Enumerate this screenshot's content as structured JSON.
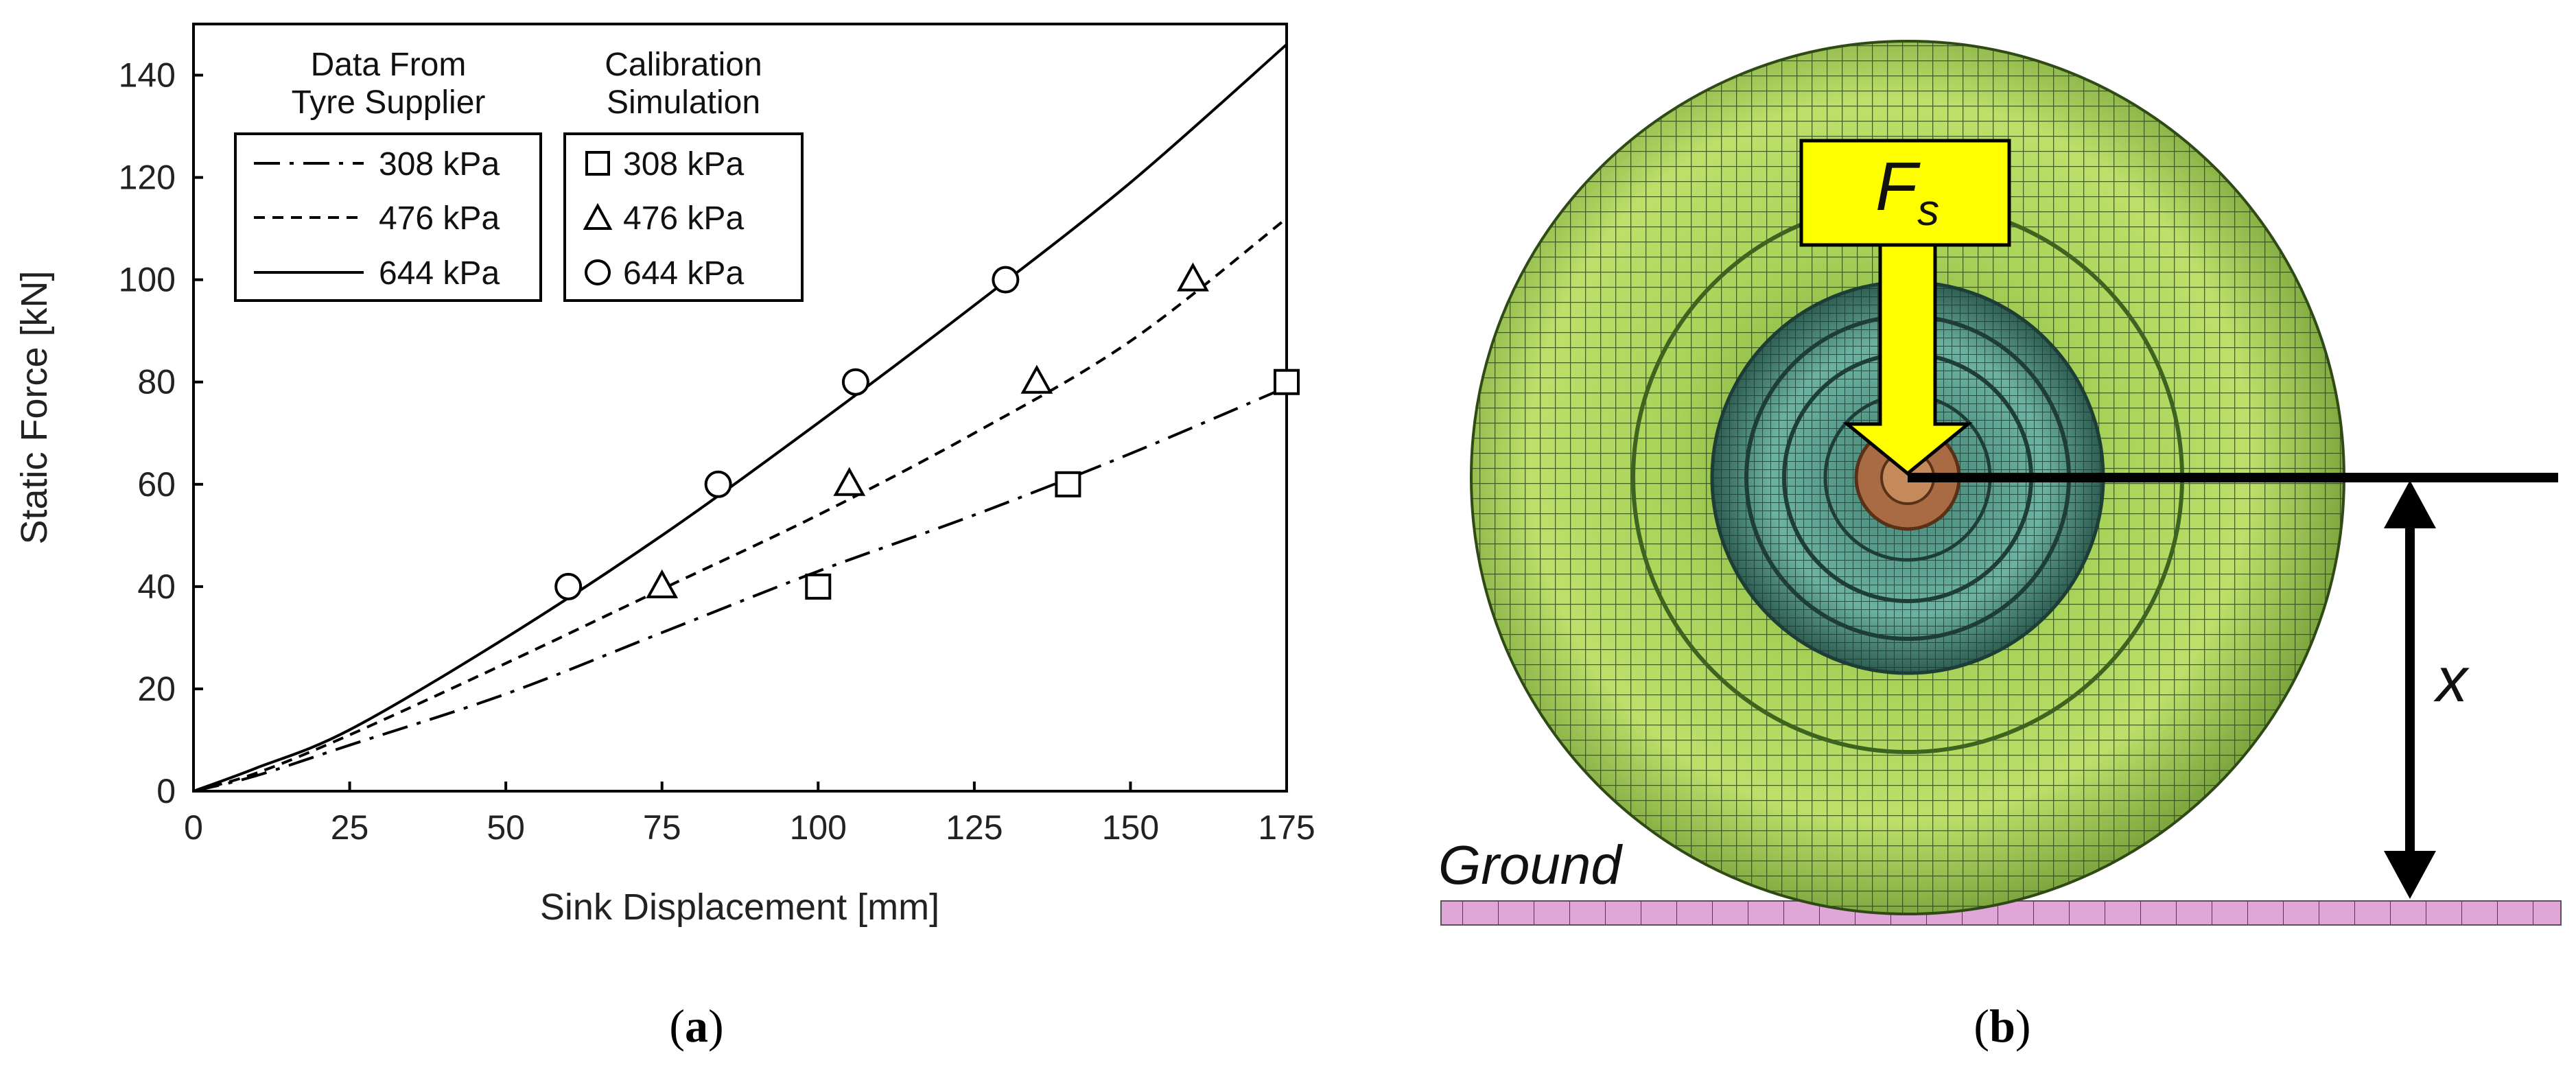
{
  "panels": {
    "a": {
      "caption_letter": "a"
    },
    "b": {
      "caption_letter": "b"
    }
  },
  "chart_data": {
    "type": "line",
    "title": "",
    "xlabel": "Sink Displacement [mm]",
    "ylabel": "Static Force [kN]",
    "xlim": [
      0,
      175
    ],
    "ylim": [
      0,
      150
    ],
    "xticks": [
      0,
      25,
      50,
      75,
      100,
      125,
      150,
      175
    ],
    "yticks": [
      0,
      20,
      40,
      60,
      80,
      100,
      120,
      140
    ],
    "grid": false,
    "legend_placement": "top-left",
    "legend_groups": [
      {
        "title_lines": [
          "Data From",
          "Tyre Supplier"
        ],
        "kind": "line"
      },
      {
        "title_lines": [
          "Calibration",
          "Simulation"
        ],
        "kind": "marker"
      }
    ],
    "series": [
      {
        "name": "308 kPa",
        "group": "Data From Tyre Supplier",
        "style": "dash-dot",
        "x": [
          0,
          10,
          25,
          50,
          75,
          100,
          125,
          150,
          175
        ],
        "y": [
          0,
          3,
          9,
          19,
          31,
          43,
          54,
          66,
          79
        ]
      },
      {
        "name": "476 kPa",
        "group": "Data From Tyre Supplier",
        "style": "dashed",
        "x": [
          0,
          10,
          25,
          50,
          75,
          100,
          125,
          150,
          175
        ],
        "y": [
          0,
          3.5,
          11,
          25,
          39.5,
          54,
          70,
          88,
          112
        ]
      },
      {
        "name": "644 kPa",
        "group": "Data From Tyre Supplier",
        "style": "solid",
        "x": [
          0,
          10,
          25,
          50,
          75,
          100,
          125,
          150,
          175
        ],
        "y": [
          0,
          4.5,
          12,
          30,
          50,
          72,
          95,
          119,
          146
        ]
      },
      {
        "name": "308 kPa",
        "group": "Calibration Simulation",
        "marker": "square",
        "x": [
          100,
          140,
          175
        ],
        "y": [
          40,
          60,
          80
        ]
      },
      {
        "name": "476 kPa",
        "group": "Calibration Simulation",
        "marker": "triangle",
        "x": [
          75,
          105,
          135,
          160
        ],
        "y": [
          40,
          60,
          80,
          100
        ]
      },
      {
        "name": "644 kPa",
        "group": "Calibration Simulation",
        "marker": "circle",
        "x": [
          60,
          84,
          106,
          130
        ],
        "y": [
          40,
          60,
          80,
          100
        ]
      }
    ]
  },
  "diagram": {
    "force_label": "F",
    "force_subscript": "s",
    "height_label": "x",
    "ground_label": "Ground",
    "tyre_color": "#9cc84e",
    "hub_color": "#5a9e8a",
    "arrow_color": "#ffff00",
    "ground_color": "#e0a6d8"
  }
}
